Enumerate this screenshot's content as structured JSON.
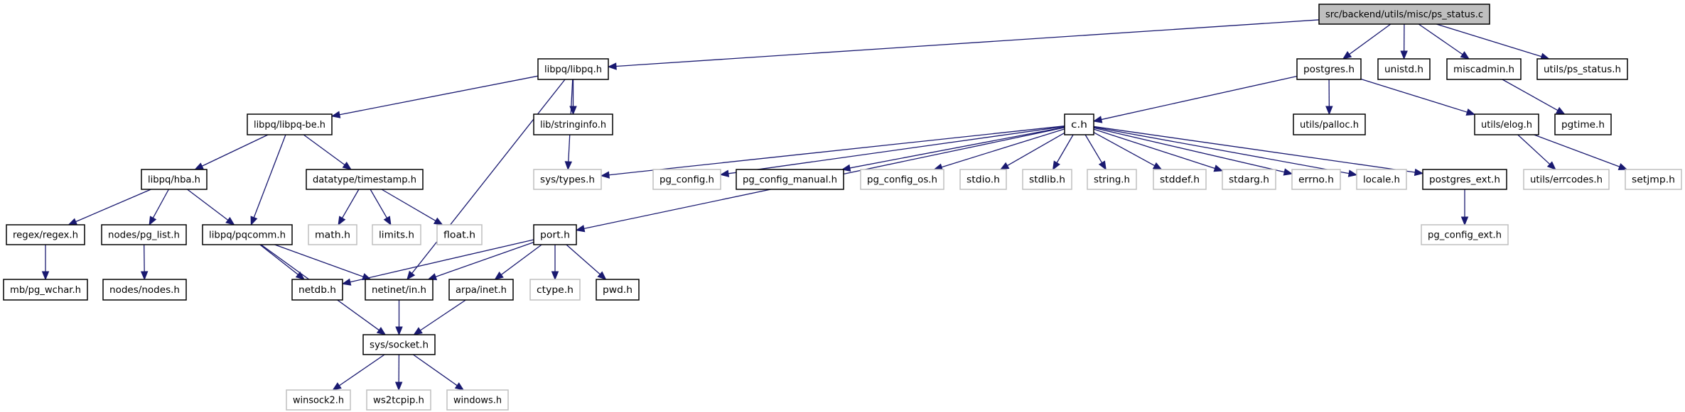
{
  "colors": {
    "edge": "#191970",
    "documented_border": "#000000",
    "external_border": "#bfbfbf",
    "root_fill": "#bfbfbf",
    "node_fill": "#ffffff"
  },
  "nodes": [
    {
      "id": "ps_status_c",
      "label": "src/backend/utils/misc/ps_status.c",
      "kind": "root"
    },
    {
      "id": "libpq_h",
      "label": "libpq/libpq.h",
      "kind": "documented"
    },
    {
      "id": "postgres_h",
      "label": "postgres.h",
      "kind": "documented"
    },
    {
      "id": "unistd_h",
      "label": "unistd.h",
      "kind": "documented"
    },
    {
      "id": "miscadmin_h",
      "label": "miscadmin.h",
      "kind": "documented"
    },
    {
      "id": "ps_status_h",
      "label": "utils/ps_status.h",
      "kind": "documented"
    },
    {
      "id": "libpq_be_h",
      "label": "libpq/libpq-be.h",
      "kind": "documented"
    },
    {
      "id": "stringinfo_h",
      "label": "lib/stringinfo.h",
      "kind": "documented"
    },
    {
      "id": "c_h",
      "label": "c.h",
      "kind": "documented"
    },
    {
      "id": "palloc_h",
      "label": "utils/palloc.h",
      "kind": "documented"
    },
    {
      "id": "elog_h",
      "label": "utils/elog.h",
      "kind": "documented"
    },
    {
      "id": "pgtime_h",
      "label": "pgtime.h",
      "kind": "documented"
    },
    {
      "id": "hba_h",
      "label": "libpq/hba.h",
      "kind": "documented"
    },
    {
      "id": "timestamp_h",
      "label": "datatype/timestamp.h",
      "kind": "documented"
    },
    {
      "id": "sys_types_h",
      "label": "sys/types.h",
      "kind": "external"
    },
    {
      "id": "pg_config_h",
      "label": "pg_config.h",
      "kind": "external"
    },
    {
      "id": "pg_config_manual_h",
      "label": "pg_config_manual.h",
      "kind": "documented"
    },
    {
      "id": "pg_config_os_h",
      "label": "pg_config_os.h",
      "kind": "external"
    },
    {
      "id": "stdio_h",
      "label": "stdio.h",
      "kind": "external"
    },
    {
      "id": "stdlib_h",
      "label": "stdlib.h",
      "kind": "external"
    },
    {
      "id": "string_h",
      "label": "string.h",
      "kind": "external"
    },
    {
      "id": "stddef_h",
      "label": "stddef.h",
      "kind": "external"
    },
    {
      "id": "stdarg_h",
      "label": "stdarg.h",
      "kind": "external"
    },
    {
      "id": "errno_h",
      "label": "errno.h",
      "kind": "external"
    },
    {
      "id": "locale_h",
      "label": "locale.h",
      "kind": "external"
    },
    {
      "id": "postgres_ext_h",
      "label": "postgres_ext.h",
      "kind": "documented"
    },
    {
      "id": "errcodes_h",
      "label": "utils/errcodes.h",
      "kind": "external"
    },
    {
      "id": "setjmp_h",
      "label": "setjmp.h",
      "kind": "external"
    },
    {
      "id": "regex_h",
      "label": "regex/regex.h",
      "kind": "documented"
    },
    {
      "id": "pg_list_h",
      "label": "nodes/pg_list.h",
      "kind": "documented"
    },
    {
      "id": "pqcomm_h",
      "label": "libpq/pqcomm.h",
      "kind": "documented"
    },
    {
      "id": "math_h",
      "label": "math.h",
      "kind": "external"
    },
    {
      "id": "limits_h",
      "label": "limits.h",
      "kind": "external"
    },
    {
      "id": "float_h",
      "label": "float.h",
      "kind": "external"
    },
    {
      "id": "port_h",
      "label": "port.h",
      "kind": "documented"
    },
    {
      "id": "pg_config_ext_h",
      "label": "pg_config_ext.h",
      "kind": "external"
    },
    {
      "id": "pg_wchar_h",
      "label": "mb/pg_wchar.h",
      "kind": "documented"
    },
    {
      "id": "nodes_h",
      "label": "nodes/nodes.h",
      "kind": "documented"
    },
    {
      "id": "netdb_h",
      "label": "netdb.h",
      "kind": "documented"
    },
    {
      "id": "netinet_in_h",
      "label": "netinet/in.h",
      "kind": "documented"
    },
    {
      "id": "arpa_inet_h",
      "label": "arpa/inet.h",
      "kind": "documented"
    },
    {
      "id": "ctype_h",
      "label": "ctype.h",
      "kind": "external"
    },
    {
      "id": "pwd_h",
      "label": "pwd.h",
      "kind": "documented"
    },
    {
      "id": "sys_socket_h",
      "label": "sys/socket.h",
      "kind": "documented"
    },
    {
      "id": "winsock2_h",
      "label": "winsock2.h",
      "kind": "external"
    },
    {
      "id": "ws2tcpip_h",
      "label": "ws2tcpip.h",
      "kind": "external"
    },
    {
      "id": "windows_h",
      "label": "windows.h",
      "kind": "external"
    }
  ],
  "edges": [
    [
      "ps_status_c",
      "libpq_h"
    ],
    [
      "ps_status_c",
      "postgres_h"
    ],
    [
      "ps_status_c",
      "unistd_h"
    ],
    [
      "ps_status_c",
      "miscadmin_h"
    ],
    [
      "ps_status_c",
      "ps_status_h"
    ],
    [
      "libpq_h",
      "libpq_be_h"
    ],
    [
      "libpq_h",
      "stringinfo_h"
    ],
    [
      "libpq_h",
      "sys_types_h"
    ],
    [
      "libpq_h",
      "netinet_in_h"
    ],
    [
      "libpq_be_h",
      "hba_h"
    ],
    [
      "libpq_be_h",
      "pqcomm_h"
    ],
    [
      "libpq_be_h",
      "timestamp_h"
    ],
    [
      "hba_h",
      "regex_h"
    ],
    [
      "hba_h",
      "pg_list_h"
    ],
    [
      "hba_h",
      "pqcomm_h"
    ],
    [
      "timestamp_h",
      "math_h"
    ],
    [
      "timestamp_h",
      "limits_h"
    ],
    [
      "timestamp_h",
      "float_h"
    ],
    [
      "regex_h",
      "pg_wchar_h"
    ],
    [
      "pg_list_h",
      "nodes_h"
    ],
    [
      "pqcomm_h",
      "netdb_h"
    ],
    [
      "pqcomm_h",
      "netinet_in_h"
    ],
    [
      "pqcomm_h",
      "sys_socket_h"
    ],
    [
      "port_h",
      "netdb_h"
    ],
    [
      "port_h",
      "netinet_in_h"
    ],
    [
      "port_h",
      "arpa_inet_h"
    ],
    [
      "port_h",
      "ctype_h"
    ],
    [
      "port_h",
      "pwd_h"
    ],
    [
      "netinet_in_h",
      "sys_socket_h"
    ],
    [
      "arpa_inet_h",
      "sys_socket_h"
    ],
    [
      "sys_socket_h",
      "winsock2_h"
    ],
    [
      "sys_socket_h",
      "ws2tcpip_h"
    ],
    [
      "sys_socket_h",
      "windows_h"
    ],
    [
      "postgres_h",
      "c_h"
    ],
    [
      "postgres_h",
      "palloc_h"
    ],
    [
      "postgres_h",
      "elog_h"
    ],
    [
      "miscadmin_h",
      "pgtime_h"
    ],
    [
      "c_h",
      "sys_types_h"
    ],
    [
      "c_h",
      "pg_config_h"
    ],
    [
      "c_h",
      "pg_config_manual_h"
    ],
    [
      "c_h",
      "pg_config_os_h"
    ],
    [
      "c_h",
      "stdio_h"
    ],
    [
      "c_h",
      "stdlib_h"
    ],
    [
      "c_h",
      "string_h"
    ],
    [
      "c_h",
      "stddef_h"
    ],
    [
      "c_h",
      "stdarg_h"
    ],
    [
      "c_h",
      "errno_h"
    ],
    [
      "c_h",
      "locale_h"
    ],
    [
      "c_h",
      "postgres_ext_h"
    ],
    [
      "c_h",
      "port_h"
    ],
    [
      "elog_h",
      "errcodes_h"
    ],
    [
      "elog_h",
      "setjmp_h"
    ],
    [
      "postgres_ext_h",
      "pg_config_ext_h"
    ]
  ]
}
